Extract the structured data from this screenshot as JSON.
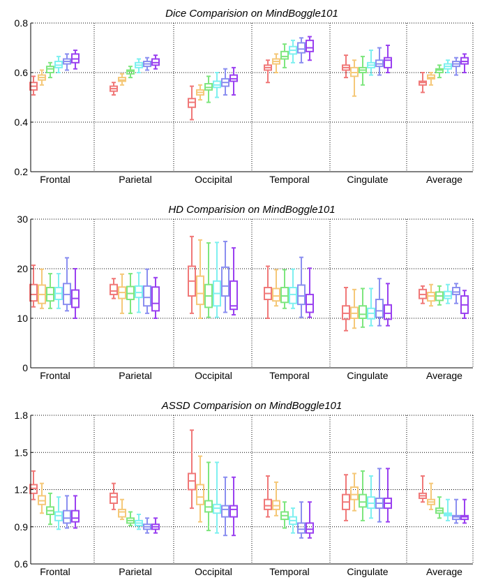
{
  "series_colors": [
    "#f07878",
    "#f5c878",
    "#7ee67e",
    "#7ef0f0",
    "#8a8ef0",
    "#9a40f0"
  ],
  "chart_data": [
    {
      "type": "box",
      "title": "Dice Comparision on MindBoggle101",
      "ylim": [
        0.2,
        0.8
      ],
      "yticks": [
        0.2,
        0.4,
        0.6,
        0.8
      ],
      "ytick_labels": [
        "0.2",
        "0.4",
        "0.6",
        "0.8"
      ],
      "grid": "dotted at y ticks and between categories",
      "categories": [
        "Frontal",
        "Parietal",
        "Occipital",
        "Temporal",
        "Cingulate",
        "Average"
      ],
      "boxes": [
        [
          [
            0.51,
            0.53,
            0.545,
            0.56,
            0.585
          ],
          [
            0.55,
            0.57,
            0.58,
            0.59,
            0.61
          ],
          [
            0.58,
            0.6,
            0.615,
            0.625,
            0.64
          ],
          [
            0.6,
            0.62,
            0.63,
            0.645,
            0.665
          ],
          [
            0.61,
            0.635,
            0.645,
            0.655,
            0.675
          ],
          [
            0.615,
            0.64,
            0.655,
            0.675,
            0.69
          ]
        ],
        [
          [
            0.51,
            0.525,
            0.535,
            0.545,
            0.56
          ],
          [
            0.55,
            0.565,
            0.57,
            0.58,
            0.595
          ],
          [
            0.58,
            0.595,
            0.605,
            0.61,
            0.625
          ],
          [
            0.6,
            0.62,
            0.63,
            0.64,
            0.655
          ],
          [
            0.61,
            0.625,
            0.635,
            0.645,
            0.66
          ],
          [
            0.615,
            0.63,
            0.64,
            0.655,
            0.67
          ]
        ],
        [
          [
            0.41,
            0.46,
            0.48,
            0.495,
            0.545
          ],
          [
            0.49,
            0.51,
            0.52,
            0.53,
            0.55
          ],
          [
            0.48,
            0.53,
            0.54,
            0.555,
            0.585
          ],
          [
            0.5,
            0.54,
            0.55,
            0.565,
            0.6
          ],
          [
            0.51,
            0.545,
            0.56,
            0.575,
            0.615
          ],
          [
            0.51,
            0.565,
            0.575,
            0.59,
            0.62
          ]
        ],
        [
          [
            0.56,
            0.61,
            0.62,
            0.63,
            0.65
          ],
          [
            0.6,
            0.635,
            0.645,
            0.655,
            0.675
          ],
          [
            0.62,
            0.655,
            0.665,
            0.685,
            0.715
          ],
          [
            0.64,
            0.675,
            0.69,
            0.705,
            0.73
          ],
          [
            0.64,
            0.68,
            0.695,
            0.72,
            0.74
          ],
          [
            0.65,
            0.685,
            0.7,
            0.73,
            0.745
          ]
        ],
        [
          [
            0.58,
            0.61,
            0.62,
            0.63,
            0.67
          ],
          [
            0.505,
            0.585,
            0.6,
            0.62,
            0.65
          ],
          [
            0.55,
            0.6,
            0.61,
            0.62,
            0.665
          ],
          [
            0.59,
            0.62,
            0.63,
            0.64,
            0.69
          ],
          [
            0.59,
            0.625,
            0.635,
            0.65,
            0.7
          ],
          [
            0.6,
            0.62,
            0.65,
            0.66,
            0.71
          ]
        ],
        [
          [
            0.52,
            0.55,
            0.56,
            0.565,
            0.6
          ],
          [
            0.55,
            0.575,
            0.58,
            0.59,
            0.6
          ],
          [
            0.58,
            0.6,
            0.61,
            0.615,
            0.63
          ],
          [
            0.6,
            0.615,
            0.625,
            0.635,
            0.65
          ],
          [
            0.59,
            0.625,
            0.635,
            0.645,
            0.66
          ],
          [
            0.6,
            0.635,
            0.645,
            0.66,
            0.675
          ]
        ]
      ]
    },
    {
      "type": "box",
      "title": "HD Comparision on MindBoggle101",
      "ylim": [
        0,
        30
      ],
      "yticks": [
        0,
        10,
        20,
        30
      ],
      "ytick_labels": [
        "0",
        "10",
        "20",
        "30"
      ],
      "grid": "dotted at y ticks and between categories",
      "categories": [
        "Frontal",
        "Parietal",
        "Occipital",
        "Temporal",
        "Cingulate",
        "Average"
      ],
      "boxes": [
        [
          [
            12.3,
            13.5,
            14.8,
            16.8,
            20.7
          ],
          [
            12.0,
            13.0,
            14.8,
            16.7,
            19.9
          ],
          [
            12.0,
            13.5,
            14.8,
            16.2,
            19.0
          ],
          [
            12.0,
            13.8,
            15.0,
            16.2,
            19.0
          ],
          [
            11.5,
            12.8,
            14.8,
            17.0,
            22.2
          ],
          [
            10.0,
            12.2,
            14.0,
            15.7,
            20.0
          ]
        ],
        [
          [
            14.0,
            14.8,
            15.5,
            16.8,
            18.0
          ],
          [
            11.0,
            14.0,
            15.2,
            16.3,
            18.9
          ],
          [
            11.0,
            13.8,
            15.0,
            16.4,
            19.0
          ],
          [
            11.2,
            14.2,
            15.2,
            16.5,
            19.2
          ],
          [
            11.0,
            12.5,
            14.2,
            16.5,
            19.9
          ],
          [
            10.0,
            11.5,
            13.0,
            16.3,
            18.2
          ]
        ],
        [
          [
            11.0,
            14.5,
            17.5,
            20.5,
            26.5
          ],
          [
            10.0,
            12.8,
            15.0,
            18.5,
            25.8
          ],
          [
            10.2,
            12.2,
            14.5,
            16.8,
            25.2
          ],
          [
            10.2,
            12.5,
            15.0,
            17.5,
            25.3
          ],
          [
            11.2,
            14.5,
            16.5,
            20.3,
            25.5
          ],
          [
            10.7,
            11.8,
            12.5,
            17.5,
            24.2
          ]
        ],
        [
          [
            10.0,
            13.8,
            15.0,
            16.2,
            20.5
          ],
          [
            12.5,
            13.5,
            14.5,
            16.0,
            19.8
          ],
          [
            12.0,
            13.2,
            14.5,
            16.2,
            19.8
          ],
          [
            12.0,
            13.0,
            14.8,
            16.2,
            19.9
          ],
          [
            10.2,
            12.8,
            14.5,
            16.7,
            22.3
          ],
          [
            10.2,
            11.2,
            12.8,
            14.8,
            20.1
          ]
        ],
        [
          [
            7.5,
            9.8,
            11.0,
            12.5,
            16.2
          ],
          [
            8.0,
            10.0,
            11.0,
            12.2,
            15.8
          ],
          [
            8.2,
            10.0,
            10.8,
            12.5,
            16.0
          ],
          [
            8.5,
            9.9,
            11.0,
            12.0,
            16.0
          ],
          [
            8.5,
            10.2,
            11.5,
            13.8,
            18.0
          ],
          [
            8.5,
            9.8,
            11.0,
            12.7,
            17.0
          ]
        ],
        [
          [
            13.0,
            14.0,
            14.8,
            15.8,
            16.5
          ],
          [
            12.5,
            13.5,
            14.5,
            15.2,
            16.8
          ],
          [
            12.7,
            13.6,
            14.5,
            15.3,
            16.5
          ],
          [
            13.0,
            14.0,
            14.5,
            15.4,
            16.8
          ],
          [
            13.0,
            14.8,
            15.3,
            16.2,
            17.0
          ],
          [
            10.0,
            11.0,
            12.7,
            14.5,
            15.6
          ]
        ]
      ]
    },
    {
      "type": "box",
      "title": "ASSD Comparision on MindBoggle101",
      "ylim": [
        0.6,
        1.8
      ],
      "yticks": [
        0.6,
        0.9,
        1.2,
        1.5,
        1.8
      ],
      "ytick_labels": [
        "0.6",
        "0.9",
        "1.2",
        "1.5",
        "1.8"
      ],
      "grid": "dotted at y ticks and between categories",
      "categories": [
        "Frontal",
        "Parietal",
        "Occipital",
        "Temporal",
        "Cingulate",
        "Average"
      ],
      "boxes": [
        [
          [
            1.12,
            1.17,
            1.21,
            1.24,
            1.35
          ],
          [
            1.01,
            1.08,
            1.11,
            1.15,
            1.25
          ],
          [
            0.92,
            1.0,
            1.03,
            1.06,
            1.17
          ],
          [
            0.88,
            0.95,
            0.99,
            1.02,
            1.14
          ],
          [
            0.89,
            0.93,
            0.97,
            1.03,
            1.15
          ],
          [
            0.89,
            0.94,
            0.97,
            1.03,
            1.15
          ]
        ],
        [
          [
            1.04,
            1.09,
            1.14,
            1.17,
            1.25
          ],
          [
            0.96,
            0.98,
            1.02,
            1.04,
            1.12
          ],
          [
            0.91,
            0.93,
            0.95,
            0.97,
            1.02
          ],
          [
            0.88,
            0.91,
            0.93,
            0.95,
            1.0
          ],
          [
            0.85,
            0.88,
            0.9,
            0.92,
            0.97
          ],
          [
            0.85,
            0.88,
            0.9,
            0.92,
            0.97
          ]
        ],
        [
          [
            1.05,
            1.2,
            1.27,
            1.33,
            1.68
          ],
          [
            0.94,
            1.08,
            1.14,
            1.24,
            1.47
          ],
          [
            0.87,
            1.02,
            1.06,
            1.11,
            1.42
          ],
          [
            0.85,
            1.01,
            1.05,
            1.08,
            1.42
          ],
          [
            0.83,
            0.98,
            1.04,
            1.07,
            1.3
          ],
          [
            0.83,
            0.98,
            1.04,
            1.07,
            1.3
          ]
        ],
        [
          [
            0.98,
            1.04,
            1.07,
            1.12,
            1.31
          ],
          [
            0.99,
            1.04,
            1.07,
            1.11,
            1.26
          ],
          [
            0.89,
            0.96,
            0.99,
            1.02,
            1.1
          ],
          [
            0.85,
            0.92,
            0.95,
            0.98,
            1.05
          ],
          [
            0.81,
            0.85,
            0.88,
            0.93,
            1.1
          ],
          [
            0.81,
            0.85,
            0.88,
            0.93,
            1.1
          ]
        ],
        [
          [
            0.95,
            1.04,
            1.1,
            1.16,
            1.32
          ],
          [
            1.03,
            1.12,
            1.16,
            1.22,
            1.33
          ],
          [
            0.95,
            1.06,
            1.1,
            1.16,
            1.35
          ],
          [
            0.97,
            1.05,
            1.09,
            1.14,
            1.31
          ],
          [
            0.94,
            1.05,
            1.09,
            1.13,
            1.37
          ],
          [
            0.94,
            1.05,
            1.09,
            1.13,
            1.37
          ]
        ],
        [
          [
            1.1,
            1.13,
            1.15,
            1.17,
            1.31
          ],
          [
            1.04,
            1.08,
            1.1,
            1.12,
            1.25
          ],
          [
            0.97,
            1.01,
            1.03,
            1.05,
            1.14
          ],
          [
            0.95,
            0.99,
            1.0,
            1.01,
            1.12
          ],
          [
            0.93,
            0.96,
            0.98,
            0.99,
            1.12
          ],
          [
            0.93,
            0.96,
            0.98,
            0.99,
            1.12
          ]
        ]
      ]
    }
  ]
}
